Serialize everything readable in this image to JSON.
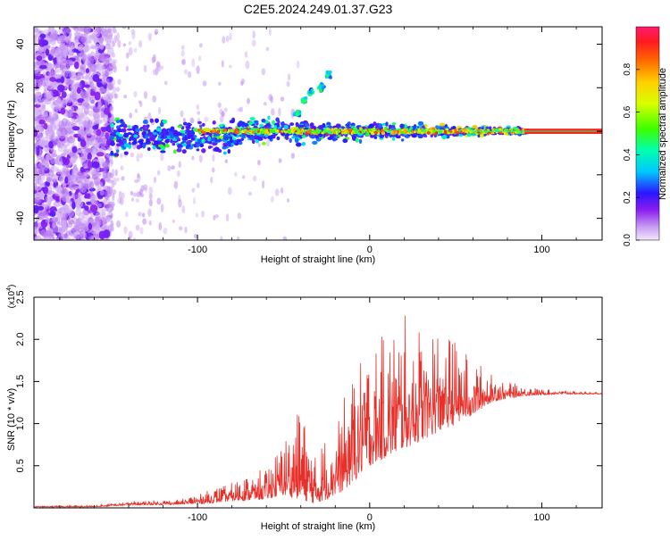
{
  "title": "C2E5.2024.249.01.37.G23",
  "colors": {
    "snr_line": "#e8302a",
    "frame": "#000000"
  },
  "chart_data": [
    {
      "type": "heatmap",
      "xlabel": "Height of straight line (km)",
      "ylabel": "Frequency (Hz)",
      "xlim": [
        -195,
        135
      ],
      "ylim": [
        -50,
        48
      ],
      "xticks": [
        -100,
        0,
        100
      ],
      "xtick_labels": [
        "-100",
        "0",
        "100"
      ],
      "yticks": [
        -40,
        -20,
        0,
        20,
        40
      ],
      "ytick_labels": [
        "-40",
        "-20",
        "0",
        "20",
        "40"
      ],
      "colorbar": {
        "label": "Normalized spectral amplitude",
        "range": [
          0,
          1
        ],
        "ticks": [
          0,
          0.2,
          0.4,
          0.6,
          0.8
        ],
        "tick_labels": [
          "0.0",
          "0.2",
          "0.4",
          "0.6",
          "0.8"
        ]
      },
      "features": {
        "noise_region_x": [
          -195,
          -150
        ],
        "signal_band_center_hz": 0,
        "dispersive_arc": [
          [
            -42,
            8
          ],
          [
            -38,
            14
          ],
          [
            -34,
            18
          ],
          [
            -28,
            20
          ],
          [
            -24,
            26
          ]
        ],
        "constant_line_x": [
          90,
          135
        ]
      }
    },
    {
      "type": "line",
      "xlabel": "Height of straight line (km)",
      "ylabel": "SNR (10 * v/v)",
      "y_multiplier": "(x10",
      "y_multiplier_exp": "4",
      "y_multiplier_close": ")",
      "xlim": [
        -195,
        135
      ],
      "ylim": [
        0,
        2.5
      ],
      "xticks": [
        -100,
        0,
        100
      ],
      "xtick_labels": [
        "-100",
        "0",
        "100"
      ],
      "yticks": [
        0.5,
        1.0,
        1.5,
        2.0,
        2.5
      ],
      "ytick_labels": [
        "0.5",
        "1.0",
        "1.5",
        "2.0",
        "2.5"
      ],
      "series": [
        {
          "envelope_x": [
            -195,
            -160,
            -140,
            -110,
            -95,
            -80,
            -60,
            -50,
            -40,
            -32,
            -25,
            -15,
            -5,
            0,
            10,
            20,
            30,
            40,
            50,
            60,
            70,
            80,
            90,
            100,
            110,
            120,
            135
          ],
          "envelope_y": [
            0.02,
            0.03,
            0.08,
            0.1,
            0.2,
            0.3,
            0.5,
            0.8,
            1.2,
            0.6,
            0.9,
            1.3,
            1.9,
            1.9,
            2.1,
            2.3,
            2.2,
            2.2,
            2.0,
            1.8,
            1.6,
            1.5,
            1.45,
            1.41,
            1.4,
            1.38,
            1.37
          ],
          "baseline_y": [
            0.01,
            0.01,
            0.03,
            0.04,
            0.05,
            0.08,
            0.1,
            0.15,
            0.1,
            0.05,
            0.1,
            0.2,
            0.4,
            0.5,
            0.6,
            0.7,
            0.8,
            0.9,
            1.0,
            1.1,
            1.25,
            1.3,
            1.33,
            1.34,
            1.35,
            1.35,
            1.35
          ]
        }
      ]
    }
  ]
}
